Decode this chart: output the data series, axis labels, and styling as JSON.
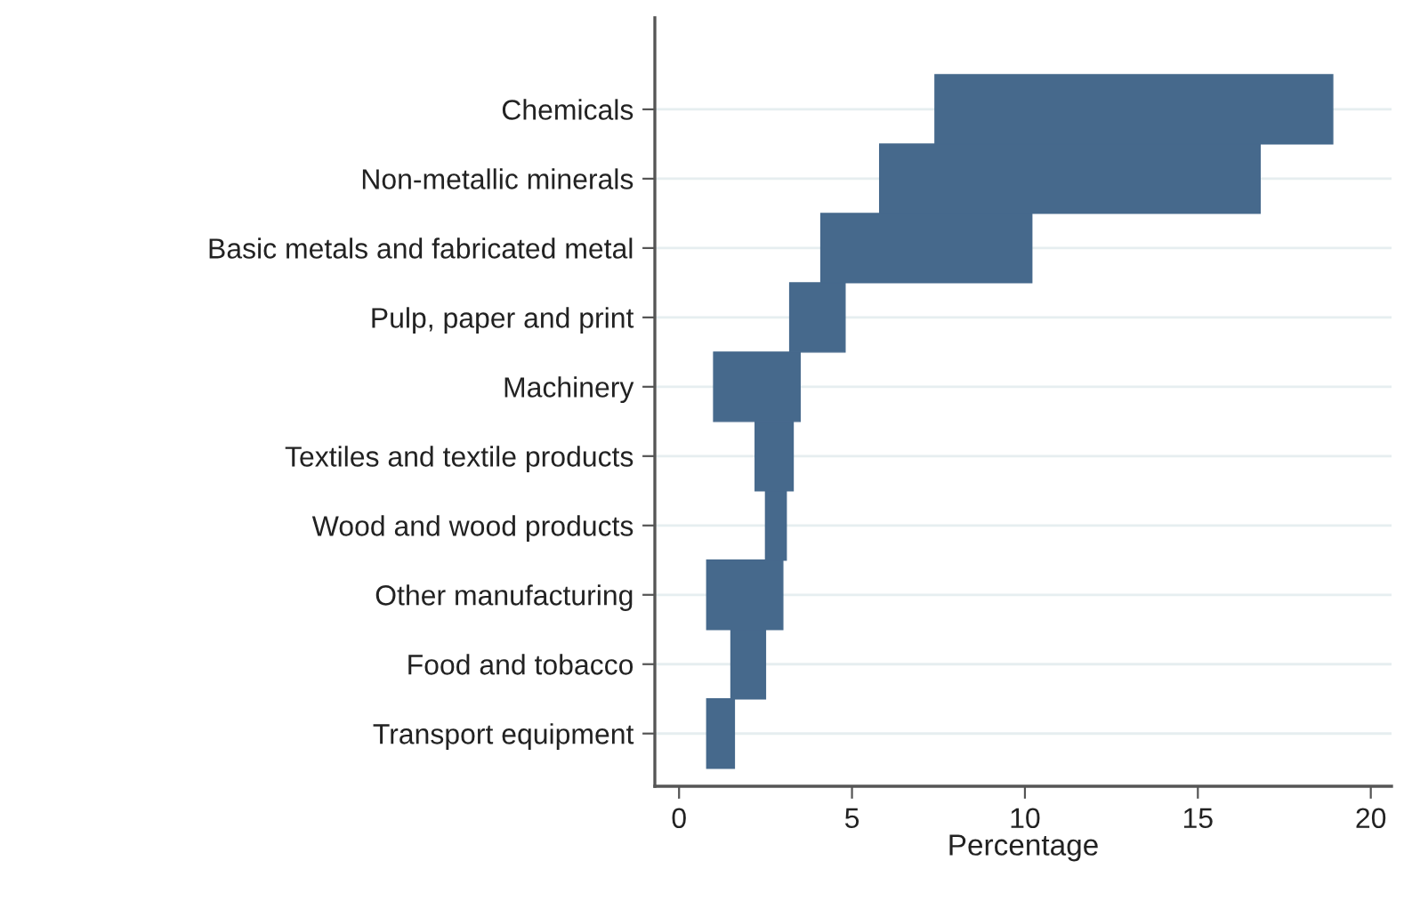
{
  "chart_data": {
    "type": "bar",
    "orientation": "horizontal",
    "xlabel": "Percentage",
    "categories": [
      "Chemicals",
      "Non-metallic minerals",
      "Basic metals and fabricated metal",
      "Pulp, paper and print",
      "Machinery",
      "Textiles and textile products",
      "Wood and wood products",
      "Other manufacturing",
      "Food and tobacco",
      "Transport equipment"
    ],
    "base": [
      7.4,
      5.8,
      4.1,
      3.2,
      1.0,
      2.2,
      2.5,
      0.8,
      1.5,
      0.8
    ],
    "values": [
      11.5,
      11.0,
      6.1,
      1.6,
      2.5,
      1.1,
      0.6,
      2.2,
      1.0,
      0.8
    ],
    "color": "#46698c",
    "xlim": [
      -0.7,
      20.6
    ],
    "xticks": [
      0,
      5,
      10,
      15,
      20
    ],
    "grid": "y",
    "legend": false
  }
}
